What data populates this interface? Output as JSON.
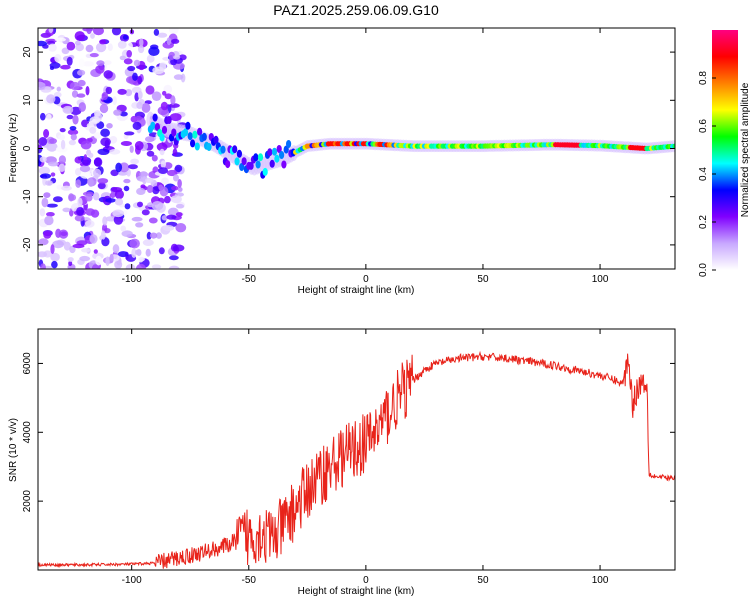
{
  "figure_title": "PAZ1.2025.259.06.09.G10",
  "chart_data": [
    {
      "type": "heatmap",
      "xlabel": "Height of straight line (km)",
      "ylabel": "Frequency (Hz)",
      "xlim": [
        -140,
        132
      ],
      "ylim": [
        -25,
        25
      ],
      "xticks": [
        -100,
        -50,
        0,
        50,
        100
      ],
      "yticks": [
        -20,
        -10,
        0,
        10,
        20
      ],
      "colorbar": {
        "label": "Normalized spectral amplitude",
        "range": [
          0,
          1
        ],
        "ticks": [
          "0.0",
          "0.2",
          "0.4",
          "0.6",
          "0.8"
        ],
        "colors": [
          "#ffffff",
          "#c8a8ff",
          "#8000ff",
          "#0000ff",
          "#00ffff",
          "#00ff00",
          "#ffff00",
          "#ff8000",
          "#ff0000",
          "#ff0080"
        ]
      },
      "ridge": {
        "x": [
          -92,
          -85,
          -75,
          -65,
          -55,
          -48,
          -42,
          -35,
          -25,
          -15,
          0,
          20,
          50,
          80,
          100,
          120,
          132
        ],
        "y": [
          6,
          4,
          3,
          1,
          -2,
          -4,
          -3,
          -2,
          0.5,
          1,
          1,
          0.5,
          0.5,
          0.8,
          0.6,
          0,
          0.5
        ]
      }
    },
    {
      "type": "line",
      "xlabel": "Height of straight line (km)",
      "ylabel": "SNR (10 * v/v)",
      "xlim": [
        -140,
        132
      ],
      "ylim": [
        0,
        7000
      ],
      "xticks": [
        -100,
        -50,
        0,
        50,
        100
      ],
      "yticks": [
        2000,
        4000,
        6000
      ],
      "series": [
        {
          "color": "#e8231a",
          "x": [
            -140,
            -120,
            -100,
            -90,
            -80,
            -70,
            -60,
            -50,
            -45,
            -40,
            -35,
            -30,
            -25,
            -20,
            -15,
            -10,
            -5,
            0,
            5,
            10,
            15,
            20,
            25,
            30,
            40,
            50,
            60,
            70,
            80,
            90,
            100,
            105,
            110,
            112,
            114,
            116,
            118,
            120,
            121,
            122,
            125,
            132
          ],
          "y": [
            150,
            150,
            170,
            200,
            350,
            500,
            700,
            1000,
            1100,
            900,
            1300,
            1800,
            2300,
            2700,
            3000,
            3300,
            3500,
            3700,
            4100,
            4600,
            5100,
            5500,
            5800,
            6000,
            6150,
            6200,
            6150,
            6050,
            5950,
            5800,
            5650,
            5550,
            5400,
            6200,
            4800,
            5300,
            5500,
            5400,
            2800,
            2750,
            2700,
            2650
          ]
        }
      ]
    }
  ]
}
